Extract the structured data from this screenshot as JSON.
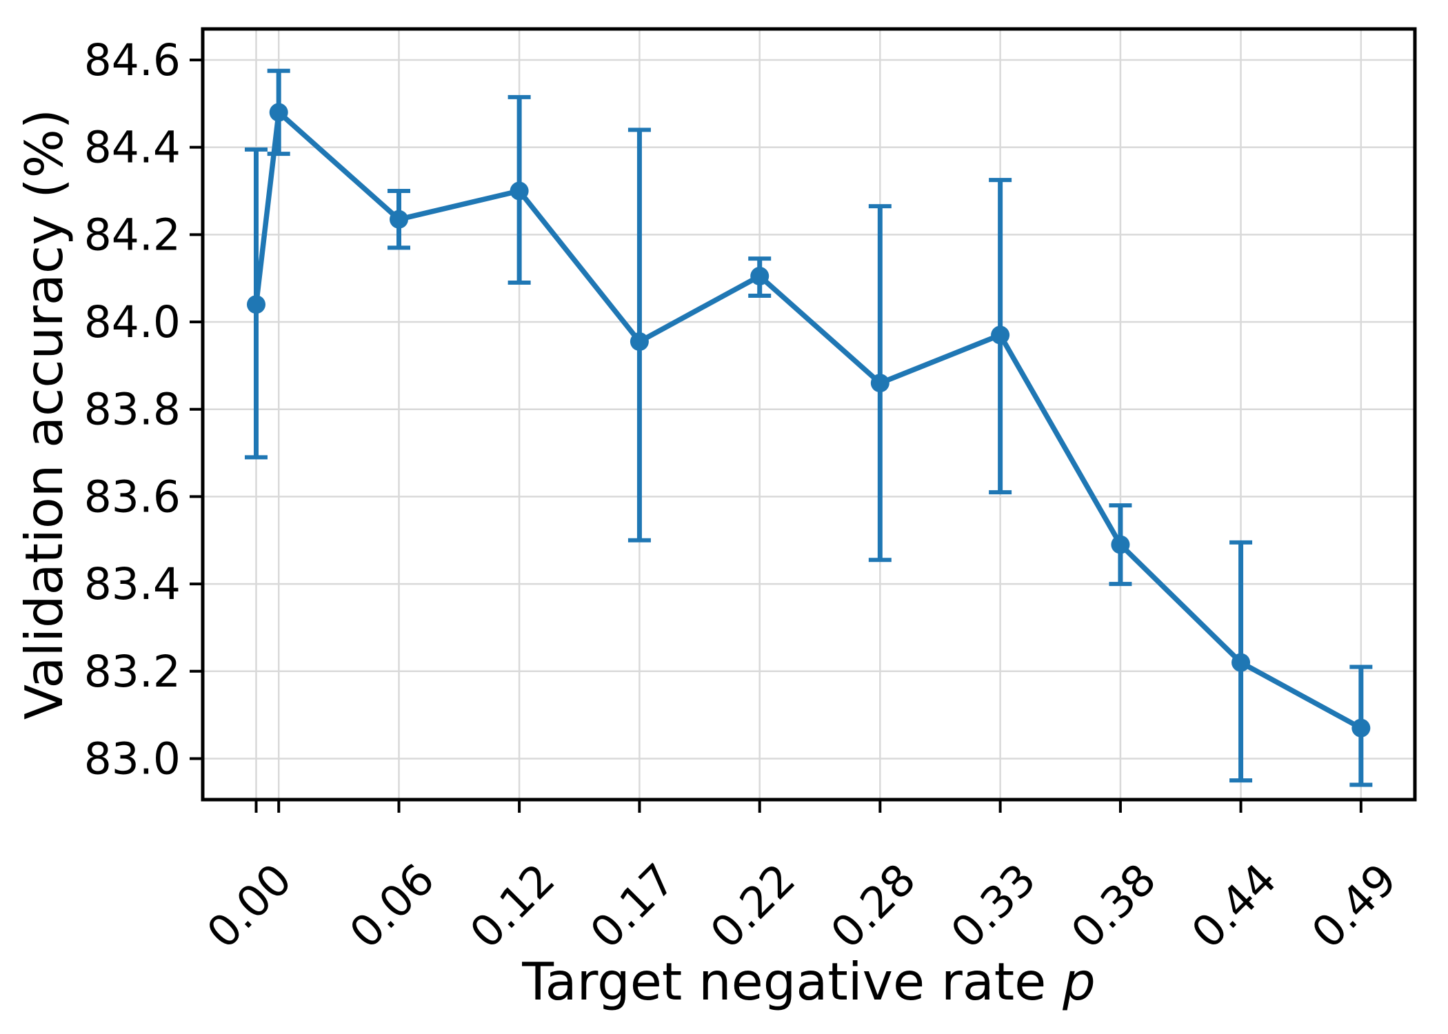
{
  "figure": {
    "background": "#ffffff",
    "xlabel_text": "Target negative rate",
    "xlabel_symbol": "p",
    "ylabel_text": "Validation accuracy (%)"
  },
  "chart_data": {
    "type": "line",
    "title": "",
    "xlabel": "Target negative rate p",
    "ylabel": "Validation accuracy (%)",
    "grid": true,
    "legend": "none",
    "xlim": [
      -0.0237,
      0.5139
    ],
    "ylim": [
      82.906,
      84.671
    ],
    "series": [
      {
        "name": "validation accuracy vs target negative rate",
        "color": "#1f77b4",
        "marker": "circle",
        "x": [
          0.0,
          0.01,
          0.0633,
          0.1167,
          0.17,
          0.2233,
          0.2767,
          0.33,
          0.3833,
          0.4367,
          0.49
        ],
        "y": [
          84.04,
          84.48,
          84.235,
          84.3,
          83.955,
          84.105,
          83.86,
          83.97,
          83.49,
          83.22,
          83.07
        ],
        "err_lo": [
          83.69,
          84.385,
          84.17,
          84.09,
          83.5,
          84.06,
          83.455,
          83.61,
          83.4,
          82.95,
          82.94
        ],
        "err_hi": [
          84.395,
          84.575,
          84.3,
          84.515,
          84.44,
          84.145,
          84.265,
          84.325,
          83.58,
          83.495,
          83.21
        ]
      }
    ],
    "xticks": {
      "positions": [
        0.0,
        0.01,
        0.0633,
        0.1167,
        0.17,
        0.2233,
        0.2767,
        0.33,
        0.3833,
        0.4367,
        0.49
      ],
      "labels": [
        "0.00",
        "",
        "0.06",
        "0.12",
        "0.17",
        "0.22",
        "0.28",
        "0.33",
        "0.38",
        "0.44",
        "0.49"
      ],
      "rotation_deg": 45
    },
    "yticks": {
      "values": [
        83.0,
        83.2,
        83.4,
        83.6,
        83.8,
        84.0,
        84.2,
        84.4,
        84.6
      ],
      "labels": [
        "83.0",
        "83.2",
        "83.4",
        "83.6",
        "83.8",
        "84.0",
        "84.2",
        "84.4",
        "84.6"
      ]
    }
  },
  "colors": {
    "line": "#1f77b4",
    "grid": "#d9d9d9",
    "frame": "#000000",
    "text": "#000000",
    "background": "#ffffff"
  }
}
